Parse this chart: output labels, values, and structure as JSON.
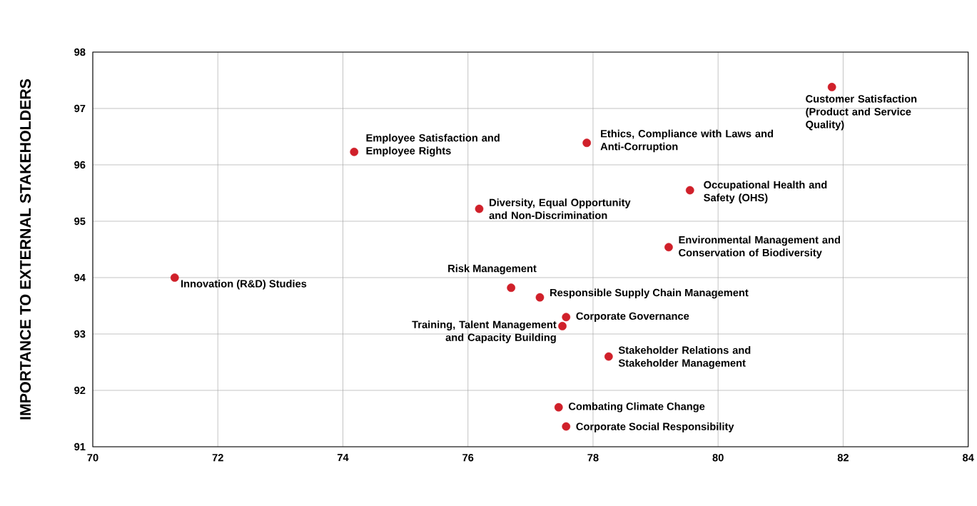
{
  "chart_data": {
    "type": "scatter",
    "ylabel": "IMPORTANCE TO EXTERNAL STAKEHOLDERS",
    "series": [
      {
        "color": "#d0202a",
        "x": [
          81.82,
          77.9,
          74.18,
          76.18,
          79.55,
          79.21,
          71.31,
          76.69,
          77.15,
          77.57,
          77.51,
          78.25,
          77.45,
          77.57
        ],
        "values": [
          97.38,
          96.39,
          96.23,
          95.22,
          95.55,
          94.54,
          94.0,
          93.82,
          93.65,
          93.3,
          93.14,
          92.6,
          91.7,
          91.36
        ]
      }
    ],
    "xlim": [
      70,
      84
    ],
    "ylim": [
      91,
      98
    ],
    "xticks": [
      70,
      72,
      74,
      76,
      78,
      80,
      82,
      84
    ],
    "yticks": [
      91,
      92,
      93,
      94,
      95,
      96,
      97,
      98
    ],
    "grid": true,
    "marker": "circle",
    "annotations": [
      {
        "text": "Customer Satisfaction (Product and Service Quality)",
        "x": 81.82,
        "y": 97.38
      },
      {
        "text": "Ethics, Compliance with Laws and Anti-Corruption",
        "x": 77.9,
        "y": 96.39
      },
      {
        "text": "Employee Satisfaction and Employee Rights",
        "x": 74.18,
        "y": 96.23
      },
      {
        "text": "Diversity, Equal Opportunity and Non-Discrimination",
        "x": 76.18,
        "y": 95.22
      },
      {
        "text": "Occupational Health and Safety (OHS)",
        "x": 79.55,
        "y": 95.55
      },
      {
        "text": "Environmental Management and Conservation of Biodiversity",
        "x": 79.21,
        "y": 94.54
      },
      {
        "text": "Innovation (R&D) Studies",
        "x": 71.31,
        "y": 94.0
      },
      {
        "text": "Risk Management",
        "x": 76.69,
        "y": 93.82
      },
      {
        "text": "Responsible Supply Chain Management",
        "x": 77.15,
        "y": 93.65
      },
      {
        "text": "Corporate Governance",
        "x": 77.57,
        "y": 93.3
      },
      {
        "text": "Training, Talent Management and Capacity Building",
        "x": 77.51,
        "y": 93.14
      },
      {
        "text": "Stakeholder Relations and Stakeholder Management",
        "x": 78.25,
        "y": 92.6
      },
      {
        "text": "Combating Climate Change",
        "x": 77.45,
        "y": 91.7
      },
      {
        "text": "Corporate Social Responsibility",
        "x": 77.57,
        "y": 91.36
      }
    ]
  }
}
